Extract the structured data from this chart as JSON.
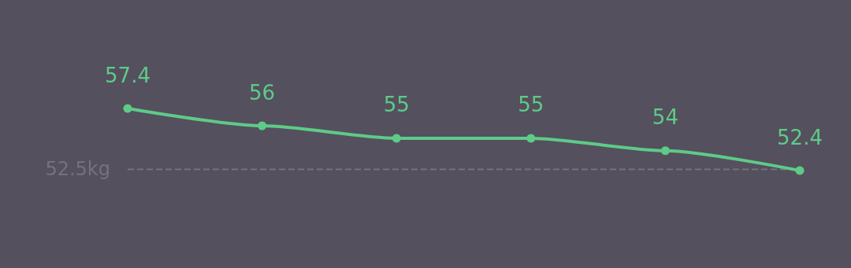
{
  "chart_data": {
    "type": "line",
    "categories": [
      null,
      null,
      null,
      null,
      null,
      null
    ],
    "series": [
      {
        "color": "#5ecb87",
        "values": [
          57.4,
          56,
          55,
          55,
          54,
          52.4
        ]
      }
    ],
    "data_labels": true,
    "marker": "circle",
    "line_style": "solid",
    "grid": false,
    "ref_lines": [
      {
        "axis": "y",
        "value": 52.5,
        "label": "52.5kg",
        "color": "#77717d",
        "line_style": "dashed"
      }
    ]
  }
}
